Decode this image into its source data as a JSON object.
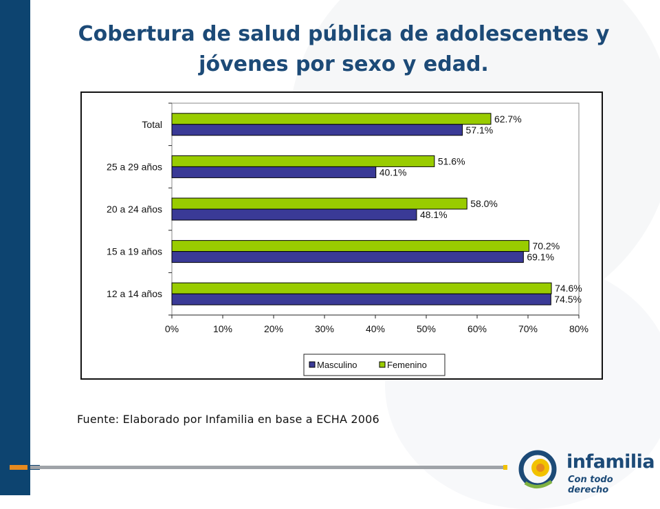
{
  "slide": {
    "title": "Cobertura de salud pública de adolescentes y jóvenes por sexo y edad.",
    "source": "Fuente: Elaborado por Infamilia en base a ECHA 2006"
  },
  "logo": {
    "name": "infamilia",
    "tagline": "Con todo derecho"
  },
  "colors": {
    "masculino": "#3a3a96",
    "femenino": "#99cc00",
    "title": "#1c4a77",
    "band": "#0d4470"
  },
  "chart_data": {
    "type": "bar",
    "orientation": "horizontal",
    "categories": [
      "Total",
      "25 a 29 años",
      "20 a 24 años",
      "15 a 19 años",
      "12 a 14 años"
    ],
    "series": [
      {
        "name": "Masculino",
        "values": [
          57.1,
          40.1,
          48.1,
          69.1,
          74.5
        ],
        "labels": [
          "57.1%",
          "40.1%",
          "48.1%",
          "69.1%",
          "74.5%"
        ]
      },
      {
        "name": "Femenino",
        "values": [
          62.7,
          51.6,
          58.0,
          70.2,
          74.6
        ],
        "labels": [
          "62.7%",
          "51.6%",
          "58.0%",
          "70.2%",
          "74.6%"
        ]
      }
    ],
    "xlim": [
      0,
      80
    ],
    "xticks": [
      0,
      10,
      20,
      30,
      40,
      50,
      60,
      70,
      80
    ],
    "xtick_labels": [
      "0%",
      "10%",
      "20%",
      "30%",
      "40%",
      "50%",
      "60%",
      "70%",
      "80%"
    ],
    "grid": false,
    "legend": "bottom"
  }
}
